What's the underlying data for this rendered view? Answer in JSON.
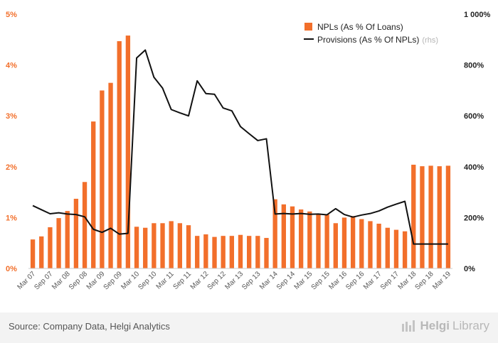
{
  "chart_data": {
    "type": "bar+line",
    "categories": [
      "Mar 07",
      "Jun 07",
      "Sep 07",
      "Dec 07",
      "Mar 08",
      "Jun 08",
      "Sep 08",
      "Dec 08",
      "Mar 09",
      "Jun 09",
      "Sep 09",
      "Dec 09",
      "Mar 10",
      "Jun 10",
      "Sep 10",
      "Dec 10",
      "Mar 11",
      "Jun 11",
      "Sep 11",
      "Dec 11",
      "Mar 12",
      "Jun 12",
      "Sep 12",
      "Dec 12",
      "Mar 13",
      "Jun 13",
      "Sep 13",
      "Dec 13",
      "Mar 14",
      "Jun 14",
      "Sep 14",
      "Dec 14",
      "Mar 15",
      "Jun 15",
      "Sep 15",
      "Dec 15",
      "Mar 16",
      "Jun 16",
      "Sep 16",
      "Dec 16",
      "Mar 17",
      "Jun 17",
      "Sep 17",
      "Dec 17",
      "Mar 18",
      "Jun 18",
      "Sep 18",
      "Dec 18",
      "Mar 19"
    ],
    "x_tick_labels": [
      "Mar 07",
      "Sep 07",
      "Mar 08",
      "Sep 08",
      "Mar 09",
      "Sep 09",
      "Mar 10",
      "Sep 10",
      "Mar 11",
      "Sep 11",
      "Mar 12",
      "Sep 12",
      "Mar 13",
      "Sep 13",
      "Mar 14",
      "Sep 14",
      "Mar 15",
      "Sep 15",
      "Mar 16",
      "Sep 16",
      "Mar 17",
      "Sep 17",
      "Mar 18",
      "Sep 18",
      "Mar 19"
    ],
    "series": [
      {
        "name": "NPLs (As % Of Loans)",
        "type": "bar",
        "axis": "left",
        "color": "#f26f2b",
        "values": [
          0.57,
          0.63,
          0.81,
          0.99,
          1.13,
          1.37,
          1.7,
          2.89,
          3.5,
          3.65,
          4.47,
          4.58,
          0.82,
          0.8,
          0.89,
          0.89,
          0.93,
          0.89,
          0.85,
          0.64,
          0.67,
          0.62,
          0.64,
          0.64,
          0.66,
          0.64,
          0.64,
          0.6,
          1.36,
          1.26,
          1.22,
          1.16,
          1.12,
          1.06,
          1.06,
          0.89,
          1.0,
          1.03,
          0.97,
          0.93,
          0.88,
          0.8,
          0.76,
          0.73,
          2.04,
          2.01,
          2.02,
          2.01,
          2.02
        ]
      },
      {
        "name": "Provisions (As % Of NPLs)",
        "suffix": "(rhs)",
        "type": "line",
        "axis": "right",
        "color": "#111111",
        "values": [
          247,
          231,
          215,
          219,
          214,
          212,
          203,
          154,
          142,
          158,
          135,
          138,
          828,
          859,
          752,
          709,
          625,
          612,
          600,
          738,
          688,
          685,
          631,
          620,
          558,
          530,
          503,
          510,
          214,
          216,
          214,
          216,
          213,
          214,
          211,
          235,
          212,
          202,
          210,
          216,
          226,
          241,
          253,
          264,
          96,
          96,
          96,
          96,
          96
        ]
      }
    ],
    "left_axis": {
      "ticks": [
        "0%",
        "1%",
        "2%",
        "3%",
        "4%",
        "5%"
      ],
      "ylim": [
        0,
        5
      ]
    },
    "right_axis": {
      "ticks": [
        "0%",
        "200%",
        "400%",
        "600%",
        "800%",
        "1 000%"
      ],
      "ylim": [
        0,
        1000
      ]
    },
    "legend_position": "top-right",
    "grid": false
  },
  "footer": {
    "source": "Source: Company Data, Helgi Analytics",
    "brand_part1": "Helgi",
    "brand_part2": "Library"
  }
}
